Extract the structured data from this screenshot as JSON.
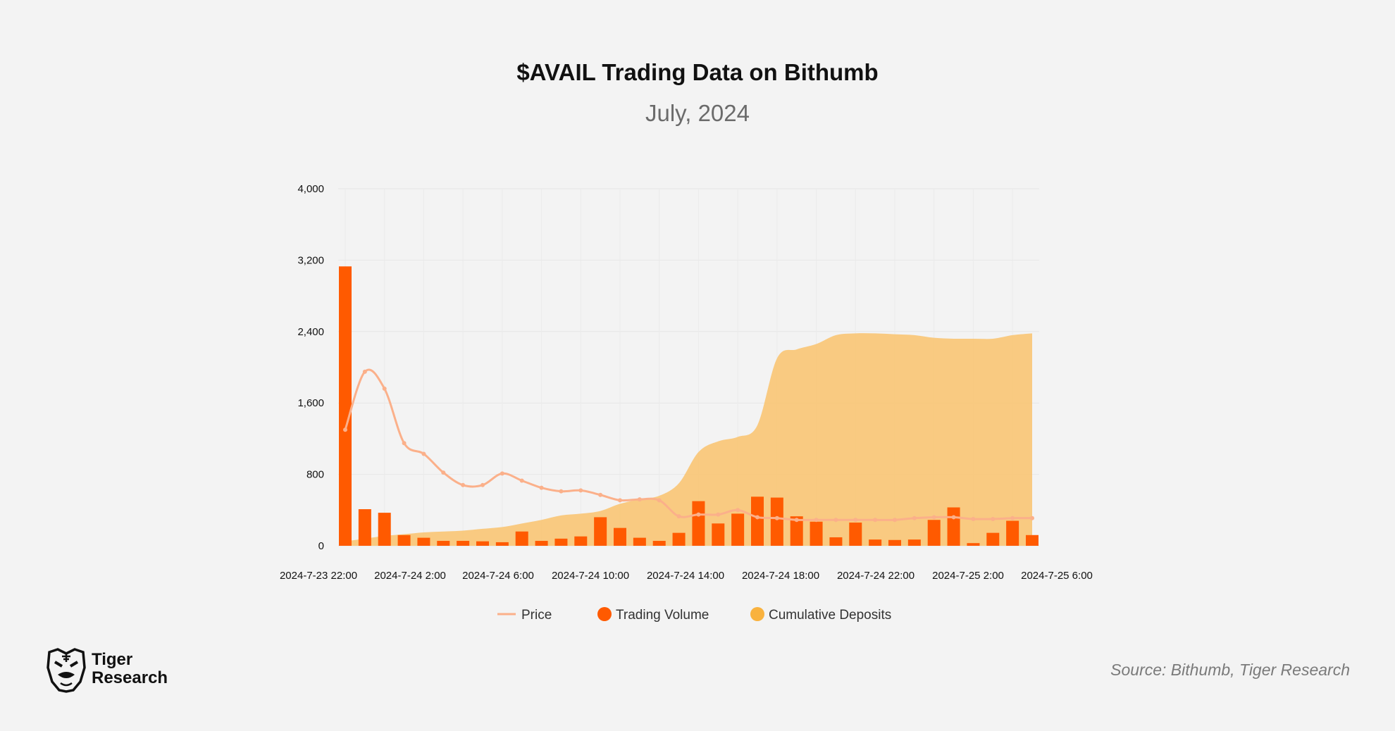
{
  "chart_data": {
    "type": "bar",
    "title": "$AVAIL Trading Data on Bithumb",
    "subtitle": "July, 2024",
    "ylim": [
      0,
      4000
    ],
    "y_ticks": [
      "0",
      "800",
      "1,600",
      "2,400",
      "3,200",
      "4,000"
    ],
    "y_tick_values": [
      0,
      800,
      1600,
      2400,
      3200,
      4000
    ],
    "x_tick_labels": [
      "2024-7-23 22:00",
      "2024-7-24 2:00",
      "2024-7-24 6:00",
      "2024-7-24 10:00",
      "2024-7-24 14:00",
      "2024-7-24 18:00",
      "2024-7-24 22:00",
      "2024-7-25 2:00",
      "2024-7-25 6:00"
    ],
    "grid": true,
    "legend_position": "bottom",
    "series": [
      {
        "name": "Price",
        "type": "line",
        "color": "#fbb08a",
        "values": [
          1300,
          1950,
          1760,
          1150,
          1030,
          820,
          680,
          680,
          810,
          730,
          650,
          610,
          620,
          570,
          510,
          520,
          510,
          330,
          350,
          350,
          400,
          320,
          310,
          290,
          290,
          290,
          290,
          290,
          290,
          310,
          320,
          320,
          300,
          300,
          310,
          310
        ]
      },
      {
        "name": "Trading Volume",
        "type": "bar",
        "color": "#ff5a00",
        "values": [
          3130,
          410,
          370,
          120,
          90,
          55,
          55,
          50,
          40,
          160,
          55,
          80,
          105,
          320,
          200,
          90,
          55,
          145,
          500,
          250,
          360,
          550,
          540,
          330,
          270,
          95,
          260,
          70,
          65,
          70,
          290,
          430,
          30,
          145,
          280,
          120
        ]
      },
      {
        "name": "Cumulative Deposits",
        "type": "area",
        "color": "#f9c77a",
        "values": [
          50,
          80,
          110,
          130,
          150,
          160,
          170,
          190,
          210,
          250,
          290,
          340,
          360,
          390,
          470,
          520,
          560,
          700,
          1050,
          1170,
          1220,
          1350,
          2100,
          2200,
          2260,
          2360,
          2380,
          2380,
          2370,
          2360,
          2330,
          2320,
          2320,
          2320,
          2360,
          2380
        ]
      }
    ]
  },
  "source": "Source: Bithumb, Tiger Research",
  "logo": {
    "line1": "Tiger",
    "line2": "Research"
  }
}
